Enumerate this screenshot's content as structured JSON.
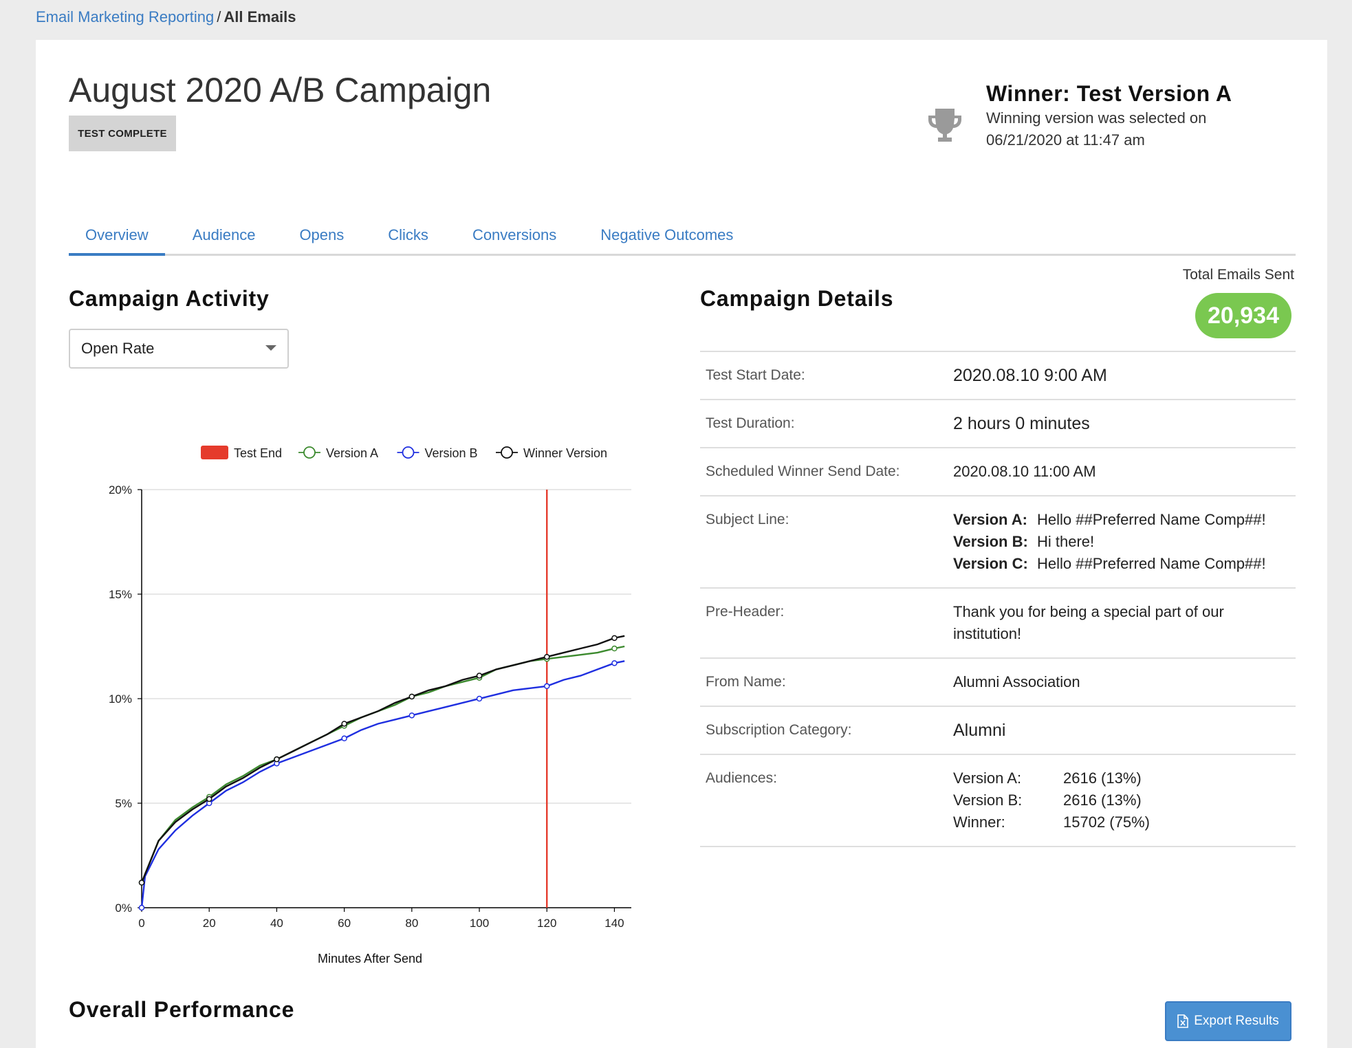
{
  "breadcrumb": {
    "parent": "Email Marketing Reporting",
    "separator": "/",
    "current": "All Emails"
  },
  "header": {
    "title": "August 2020 A/B Campaign",
    "status": "TEST COMPLETE",
    "winner_title": "Winner: Test Version A",
    "winner_desc": "Winning version was selected on 06/21/2020 at 11:47 am"
  },
  "tabs": [
    {
      "label": "Overview",
      "active": true
    },
    {
      "label": "Audience"
    },
    {
      "label": "Opens"
    },
    {
      "label": "Clicks"
    },
    {
      "label": "Conversions"
    },
    {
      "label": "Negative Outcomes"
    }
  ],
  "activity": {
    "heading": "Campaign Activity",
    "metric_selected": "Open Rate"
  },
  "chart_data": {
    "type": "line",
    "xlabel": "Minutes After Send",
    "ylabel": "",
    "xlim": [
      0,
      145
    ],
    "ylim": [
      0,
      20
    ],
    "x_ticks": [
      0,
      20,
      40,
      60,
      80,
      100,
      120,
      140
    ],
    "y_ticks": [
      0,
      5,
      10,
      15,
      20
    ],
    "y_tick_format": "%",
    "grid": "horizontal",
    "legend_position": "top",
    "test_end": {
      "name": "Test End",
      "x": 120,
      "color": "#e53b2c"
    },
    "series": [
      {
        "name": "Version A",
        "color": "#3c8a2e",
        "x": [
          0,
          5,
          10,
          15,
          20,
          25,
          30,
          35,
          40,
          45,
          50,
          55,
          60,
          65,
          70,
          75,
          80,
          85,
          90,
          95,
          100,
          105,
          110,
          115,
          120,
          125,
          130,
          135,
          140,
          143
        ],
        "y": [
          1.2,
          3.2,
          4.2,
          4.8,
          5.3,
          5.9,
          6.3,
          6.8,
          7.1,
          7.5,
          7.9,
          8.3,
          8.7,
          9.1,
          9.4,
          9.7,
          10.1,
          10.3,
          10.6,
          10.8,
          11.0,
          11.4,
          11.6,
          11.8,
          11.9,
          12.0,
          12.1,
          12.2,
          12.4,
          12.5
        ],
        "markers_x": [
          0,
          20,
          40,
          60,
          80,
          100,
          120,
          140
        ]
      },
      {
        "name": "Version B",
        "color": "#1f2fe0",
        "x": [
          0,
          1,
          5,
          10,
          15,
          20,
          25,
          30,
          35,
          40,
          45,
          50,
          55,
          60,
          65,
          70,
          75,
          80,
          85,
          90,
          95,
          100,
          105,
          110,
          115,
          120,
          125,
          130,
          135,
          140,
          143
        ],
        "y": [
          0,
          1.5,
          2.8,
          3.7,
          4.4,
          5.0,
          5.6,
          6.0,
          6.5,
          6.9,
          7.2,
          7.5,
          7.8,
          8.1,
          8.5,
          8.8,
          9.0,
          9.2,
          9.4,
          9.6,
          9.8,
          10.0,
          10.2,
          10.4,
          10.5,
          10.6,
          10.9,
          11.1,
          11.4,
          11.7,
          11.8
        ],
        "markers_x": [
          0,
          20,
          40,
          60,
          80,
          100,
          120,
          140
        ]
      },
      {
        "name": "Winner Version",
        "color": "#111111",
        "x": [
          0,
          5,
          10,
          15,
          20,
          25,
          30,
          35,
          40,
          45,
          50,
          55,
          60,
          65,
          70,
          75,
          80,
          85,
          90,
          95,
          100,
          105,
          110,
          115,
          120,
          125,
          130,
          135,
          140,
          143
        ],
        "y": [
          1.2,
          3.2,
          4.1,
          4.7,
          5.2,
          5.8,
          6.2,
          6.7,
          7.1,
          7.5,
          7.9,
          8.3,
          8.8,
          9.1,
          9.4,
          9.8,
          10.1,
          10.4,
          10.6,
          10.9,
          11.1,
          11.4,
          11.6,
          11.8,
          12.0,
          12.2,
          12.4,
          12.6,
          12.9,
          13.0
        ],
        "markers_x": [
          0,
          20,
          40,
          60,
          80,
          100,
          120,
          140
        ]
      }
    ]
  },
  "details": {
    "heading": "Campaign Details",
    "total_label": "Total Emails Sent",
    "total_value": "20,934",
    "test_start_label": "Test Start Date:",
    "test_start_value": "2020.08.10 9:00 AM",
    "duration_label": "Test Duration:",
    "duration_value": "2 hours 0 minutes",
    "winner_send_label": "Scheduled Winner Send Date:",
    "winner_send_value": "2020.08.10 11:00 AM",
    "subject_label": "Subject Line:",
    "subjects": [
      {
        "version": "Version A:",
        "text": "Hello ##Preferred Name Comp##!"
      },
      {
        "version": "Version B:",
        "text": "Hi there!"
      },
      {
        "version": "Version C:",
        "text": "Hello ##Preferred Name Comp##!"
      }
    ],
    "preheader_label": "Pre-Header:",
    "preheader_value": "Thank you for being a special part of our institution!",
    "from_label": "From Name:",
    "from_value": "Alumni Association",
    "category_label": "Subscription Category:",
    "category_value": "Alumni",
    "audiences_label": "Audiences:",
    "audiences": [
      {
        "name": "Version A:",
        "value": "2616 (13%)"
      },
      {
        "name": "Version B:",
        "value": "2616 (13%)"
      },
      {
        "name": "Winner:",
        "value": "15702 (75%)"
      }
    ]
  },
  "performance": {
    "heading": "Overall Performance",
    "export_label": "Export Results",
    "export_icon": "excel-file-icon"
  }
}
